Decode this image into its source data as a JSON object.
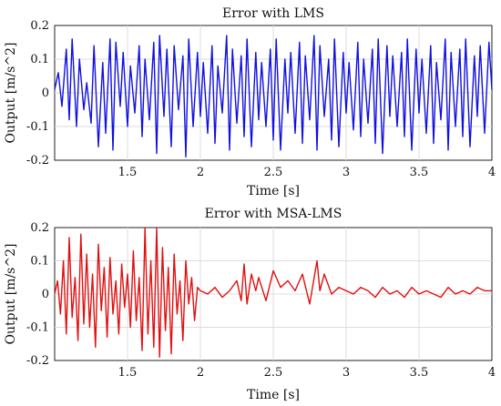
{
  "chart_data": [
    {
      "type": "line",
      "title": "Error with LMS",
      "xlabel": "Time [s]",
      "ylabel": "Output [m/s^2]",
      "xlim": [
        1.0,
        4.0
      ],
      "ylim": [
        -0.2,
        0.2
      ],
      "xticks": [
        1.5,
        2,
        2.5,
        3,
        3.5,
        4
      ],
      "xtick_labels": [
        "1.5",
        "2",
        "2.5",
        "3",
        "3.5",
        "4"
      ],
      "yticks": [
        -0.2,
        -0.1,
        0,
        0.1,
        0.2
      ],
      "ytick_labels": [
        "-0.2",
        "-0.1",
        "0",
        "0.1",
        "0.2"
      ],
      "grid": true,
      "series": [
        {
          "color": "#1010e0",
          "x": [
            1.0,
            1.025,
            1.05,
            1.08,
            1.1,
            1.12,
            1.15,
            1.17,
            1.2,
            1.22,
            1.25,
            1.27,
            1.3,
            1.33,
            1.35,
            1.38,
            1.4,
            1.42,
            1.45,
            1.47,
            1.5,
            1.52,
            1.55,
            1.58,
            1.6,
            1.62,
            1.65,
            1.68,
            1.7,
            1.72,
            1.75,
            1.77,
            1.8,
            1.82,
            1.85,
            1.88,
            1.9,
            1.92,
            1.95,
            1.98,
            2.0,
            2.02,
            2.05,
            2.08,
            2.1,
            2.12,
            2.15,
            2.18,
            2.2,
            2.22,
            2.25,
            2.28,
            2.3,
            2.32,
            2.35,
            2.38,
            2.4,
            2.42,
            2.45,
            2.48,
            2.5,
            2.52,
            2.55,
            2.58,
            2.6,
            2.62,
            2.65,
            2.68,
            2.7,
            2.72,
            2.75,
            2.78,
            2.8,
            2.82,
            2.85,
            2.88,
            2.9,
            2.92,
            2.95,
            2.98,
            3.0,
            3.02,
            3.05,
            3.08,
            3.1,
            3.12,
            3.15,
            3.18,
            3.2,
            3.22,
            3.25,
            3.28,
            3.3,
            3.32,
            3.35,
            3.38,
            3.4,
            3.42,
            3.45,
            3.48,
            3.5,
            3.52,
            3.55,
            3.58,
            3.6,
            3.62,
            3.65,
            3.68,
            3.7,
            3.72,
            3.75,
            3.78,
            3.8,
            3.82,
            3.85,
            3.88,
            3.9,
            3.92,
            3.95,
            3.98,
            4.0
          ],
          "y": [
            0.01,
            0.06,
            -0.04,
            0.13,
            -0.08,
            0.16,
            -0.1,
            0.1,
            -0.05,
            0.03,
            -0.09,
            0.14,
            -0.16,
            0.09,
            -0.12,
            0.16,
            -0.17,
            0.15,
            -0.04,
            0.12,
            -0.1,
            0.08,
            -0.06,
            0.14,
            -0.13,
            0.1,
            -0.08,
            0.15,
            -0.18,
            0.17,
            -0.07,
            0.13,
            -0.16,
            0.14,
            -0.05,
            0.11,
            -0.19,
            0.16,
            -0.1,
            0.12,
            -0.07,
            0.09,
            -0.12,
            0.14,
            -0.15,
            0.08,
            -0.06,
            0.17,
            -0.17,
            0.13,
            -0.09,
            0.11,
            -0.13,
            0.16,
            -0.16,
            0.12,
            -0.08,
            0.09,
            -0.1,
            0.13,
            -0.14,
            0.16,
            -0.17,
            0.1,
            -0.06,
            0.12,
            -0.12,
            0.15,
            -0.15,
            0.11,
            -0.08,
            0.17,
            -0.17,
            0.14,
            -0.07,
            0.1,
            -0.14,
            0.16,
            -0.16,
            0.12,
            -0.06,
            0.09,
            -0.11,
            0.15,
            -0.13,
            0.1,
            -0.09,
            0.13,
            -0.15,
            0.16,
            -0.18,
            0.14,
            -0.07,
            0.11,
            -0.1,
            0.12,
            -0.13,
            0.16,
            -0.17,
            0.13,
            -0.06,
            0.1,
            -0.12,
            0.14,
            -0.15,
            0.09,
            -0.08,
            0.16,
            -0.17,
            0.12,
            -0.1,
            0.13,
            -0.13,
            0.16,
            -0.16,
            0.11,
            -0.07,
            0.14,
            -0.12,
            0.15,
            0.01
          ]
        }
      ]
    },
    {
      "type": "line",
      "title": "Error with MSA-LMS",
      "xlabel": "Time [s]",
      "ylabel": "Output [m/s^2]",
      "xlim": [
        1.0,
        4.0
      ],
      "ylim": [
        -0.2,
        0.2
      ],
      "xticks": [
        1.5,
        2,
        2.5,
        3,
        3.5,
        4
      ],
      "xtick_labels": [
        "1.5",
        "2",
        "2.5",
        "3",
        "3.5",
        "4"
      ],
      "yticks": [
        -0.2,
        -0.1,
        0,
        0.1,
        0.2
      ],
      "ytick_labels": [
        "-0.2",
        "-0.1",
        "0",
        "0.1",
        "0.2"
      ],
      "grid": true,
      "series": [
        {
          "color": "#e01010",
          "x": [
            1.0,
            1.02,
            1.04,
            1.06,
            1.08,
            1.1,
            1.12,
            1.14,
            1.16,
            1.18,
            1.2,
            1.22,
            1.24,
            1.26,
            1.28,
            1.3,
            1.32,
            1.34,
            1.36,
            1.38,
            1.4,
            1.42,
            1.44,
            1.46,
            1.48,
            1.5,
            1.52,
            1.54,
            1.56,
            1.58,
            1.6,
            1.62,
            1.64,
            1.66,
            1.68,
            1.7,
            1.72,
            1.74,
            1.76,
            1.78,
            1.8,
            1.82,
            1.84,
            1.86,
            1.88,
            1.9,
            1.92,
            1.94,
            1.96,
            1.98,
            2.0,
            2.05,
            2.1,
            2.15,
            2.2,
            2.25,
            2.28,
            2.3,
            2.32,
            2.35,
            2.38,
            2.4,
            2.45,
            2.5,
            2.55,
            2.6,
            2.65,
            2.7,
            2.75,
            2.8,
            2.82,
            2.85,
            2.9,
            2.95,
            3.0,
            3.05,
            3.1,
            3.15,
            3.2,
            3.25,
            3.3,
            3.35,
            3.4,
            3.45,
            3.5,
            3.55,
            3.6,
            3.65,
            3.7,
            3.75,
            3.8,
            3.85,
            3.9,
            3.95,
            4.0
          ],
          "y": [
            0.0,
            0.04,
            -0.06,
            0.1,
            -0.12,
            0.17,
            -0.07,
            0.05,
            -0.14,
            0.18,
            -0.09,
            0.12,
            -0.1,
            0.06,
            -0.16,
            0.15,
            -0.05,
            0.08,
            -0.13,
            0.11,
            -0.06,
            0.04,
            -0.12,
            0.09,
            -0.04,
            0.06,
            -0.1,
            0.13,
            -0.08,
            0.05,
            -0.17,
            0.2,
            -0.12,
            0.1,
            -0.16,
            0.2,
            -0.19,
            0.14,
            -0.11,
            0.08,
            -0.18,
            0.12,
            -0.06,
            0.04,
            -0.14,
            0.1,
            -0.03,
            0.05,
            -0.08,
            0.02,
            0.01,
            0.0,
            0.02,
            -0.01,
            0.01,
            0.04,
            -0.02,
            0.09,
            -0.03,
            0.06,
            0.01,
            0.05,
            -0.02,
            0.07,
            0.02,
            0.04,
            0.01,
            0.06,
            -0.03,
            0.1,
            0.01,
            0.06,
            0.0,
            0.02,
            0.01,
            0.0,
            0.02,
            0.01,
            -0.01,
            0.02,
            0.0,
            0.01,
            -0.01,
            0.02,
            0.0,
            0.01,
            0.0,
            -0.01,
            0.02,
            0.0,
            0.01,
            0.0,
            0.02,
            0.01,
            0.01
          ]
        }
      ]
    }
  ]
}
